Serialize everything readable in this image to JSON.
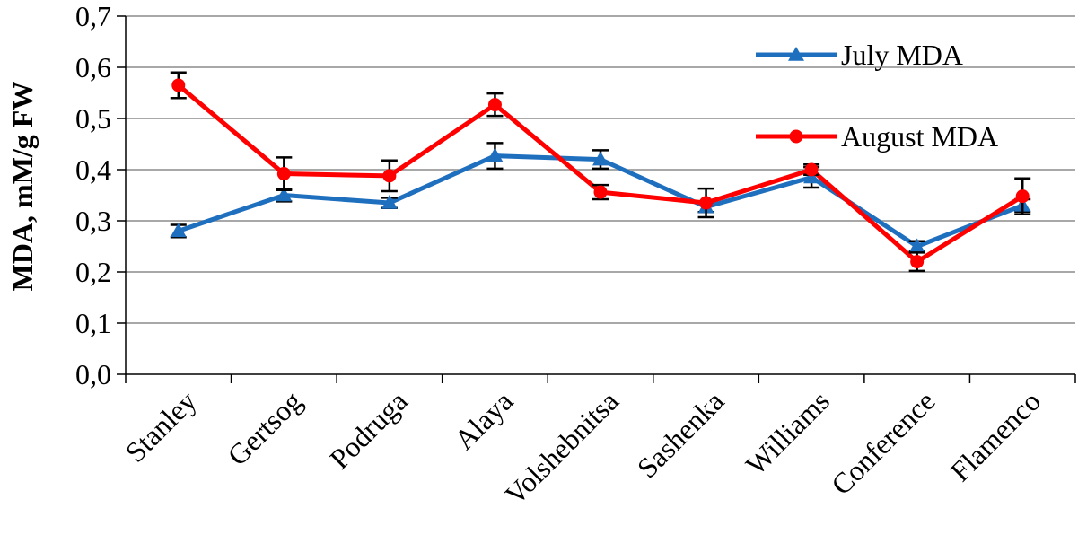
{
  "chart_data": {
    "type": "line",
    "categories": [
      "Stanley",
      "Gertsog",
      "Podruga",
      "Alaya",
      "Volshebnitsa",
      "Sashenka",
      "Williams",
      "Conference",
      "Flamenco"
    ],
    "series": [
      {
        "name": "July MDA",
        "color": "#1f6fbf",
        "marker": "triangle",
        "values": [
          0.28,
          0.35,
          0.335,
          0.427,
          0.42,
          0.327,
          0.385,
          0.25,
          0.33
        ],
        "errors": [
          0.012,
          0.012,
          0.01,
          0.025,
          0.018,
          0.01,
          0.02,
          0.01,
          0.012
        ]
      },
      {
        "name": "August MDA",
        "color": "#ff0000",
        "marker": "circle",
        "values": [
          0.565,
          0.392,
          0.388,
          0.527,
          0.356,
          0.335,
          0.4,
          0.22,
          0.348
        ],
        "errors": [
          0.025,
          0.032,
          0.03,
          0.022,
          0.014,
          0.028,
          0.01,
          0.018,
          0.035
        ]
      }
    ],
    "title": "",
    "xlabel": "",
    "ylabel": "MDA, mM/g FW",
    "ylim": [
      0,
      0.7
    ],
    "yticks": [
      "0,0",
      "0,1",
      "0,2",
      "0,3",
      "0,4",
      "0,5",
      "0,6",
      "0,7"
    ],
    "grid": true,
    "legend_position": "top-right"
  }
}
